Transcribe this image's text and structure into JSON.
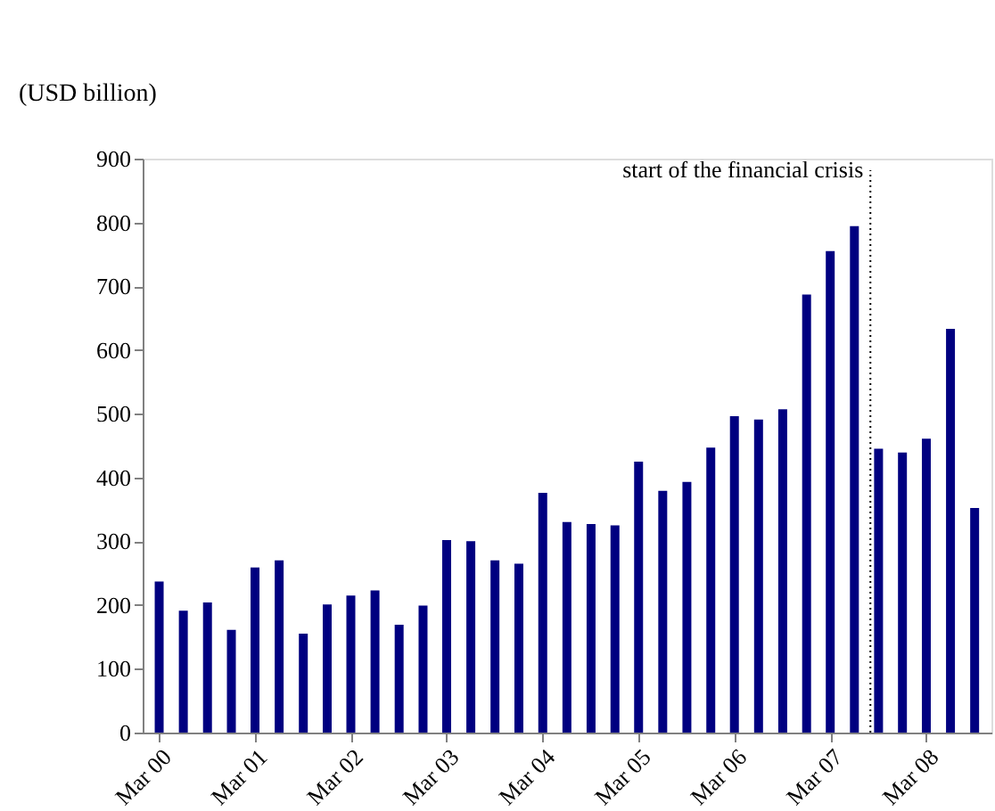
{
  "chart_data": {
    "type": "bar",
    "ylabel": "(USD billion)",
    "x": [
      "2000-03",
      "2000-06",
      "2000-09",
      "2000-12",
      "2001-03",
      "2001-06",
      "2001-09",
      "2001-12",
      "2002-03",
      "2002-06",
      "2002-09",
      "2002-12",
      "2003-03",
      "2003-06",
      "2003-09",
      "2003-12",
      "2004-03",
      "2004-06",
      "2004-09",
      "2004-12",
      "2005-03",
      "2005-06",
      "2005-09",
      "2005-12",
      "2006-03",
      "2006-06",
      "2006-09",
      "2006-12",
      "2007-03",
      "2007-06",
      "2007-09",
      "2007-12",
      "2008-03",
      "2008-06",
      "2008-09"
    ],
    "values": [
      237,
      191,
      204,
      161,
      259,
      270,
      155,
      201,
      215,
      223,
      169,
      199,
      302,
      300,
      270,
      265,
      376,
      330,
      327,
      325,
      425,
      379,
      393,
      447,
      496,
      491,
      507,
      687,
      755,
      794,
      445,
      439,
      461,
      633,
      352
    ],
    "color": "#000080",
    "xlim": [
      "2000-02",
      "2008-10"
    ],
    "xticks": [
      {
        "value": "2000-03",
        "label": "Mar 00"
      },
      {
        "value": "2001-03",
        "label": "Mar 01"
      },
      {
        "value": "2002-03",
        "label": "Mar 02"
      },
      {
        "value": "2003-03",
        "label": "Mar 03"
      },
      {
        "value": "2004-03",
        "label": "Mar 04"
      },
      {
        "value": "2005-03",
        "label": "Mar 05"
      },
      {
        "value": "2006-03",
        "label": "Mar 06"
      },
      {
        "value": "2007-03",
        "label": "Mar 07"
      },
      {
        "value": "2008-03",
        "label": "Mar 08"
      }
    ],
    "ylim": [
      0,
      900
    ],
    "yticks": [
      0,
      100,
      200,
      300,
      400,
      500,
      600,
      700,
      800,
      900
    ],
    "ref_lines": [
      {
        "axis": "x",
        "value": "2007-08",
        "label": "start of the financial crisis",
        "color": "#000000",
        "line_style": "dotted"
      }
    ],
    "grid": false
  }
}
